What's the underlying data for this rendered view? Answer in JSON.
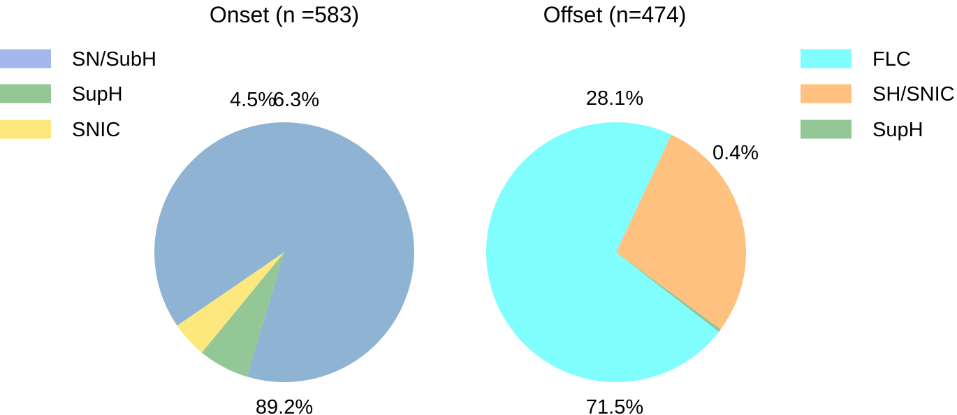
{
  "chart_data": [
    {
      "type": "pie",
      "title": "Onset (n =583)",
      "slices": [
        {
          "name": "SN/SubH",
          "value": 89.2,
          "label": "89.2%",
          "color": "#8fb4d3"
        },
        {
          "name": "SupH",
          "value": 6.3,
          "label": "6.3%",
          "color": "#93c795"
        },
        {
          "name": "SNIC",
          "value": 4.5,
          "label": "4.5%",
          "color": "#fde87e"
        }
      ],
      "legend": {
        "placement": "top-left",
        "entries": [
          {
            "name": "SN/SubH",
            "color": "#a4b8ee"
          },
          {
            "name": "SupH",
            "color": "#93c795"
          },
          {
            "name": "SNIC",
            "color": "#fde87e"
          }
        ]
      }
    },
    {
      "type": "pie",
      "title": "Offset (n=474)",
      "slices": [
        {
          "name": "FLC",
          "value": 71.5,
          "label": "71.5%",
          "color": "#80fefe"
        },
        {
          "name": "SH/SNIC",
          "value": 28.1,
          "label": "28.1%",
          "color": "#fec17f"
        },
        {
          "name": "SupH",
          "value": 0.4,
          "label": "0.4%",
          "color": "#93c795"
        }
      ],
      "legend": {
        "placement": "top-right",
        "entries": [
          {
            "name": "FLC",
            "color": "#80fefe"
          },
          {
            "name": "SH/SNIC",
            "color": "#fec17f"
          },
          {
            "name": "SupH",
            "color": "#93c795"
          }
        ]
      }
    }
  ]
}
